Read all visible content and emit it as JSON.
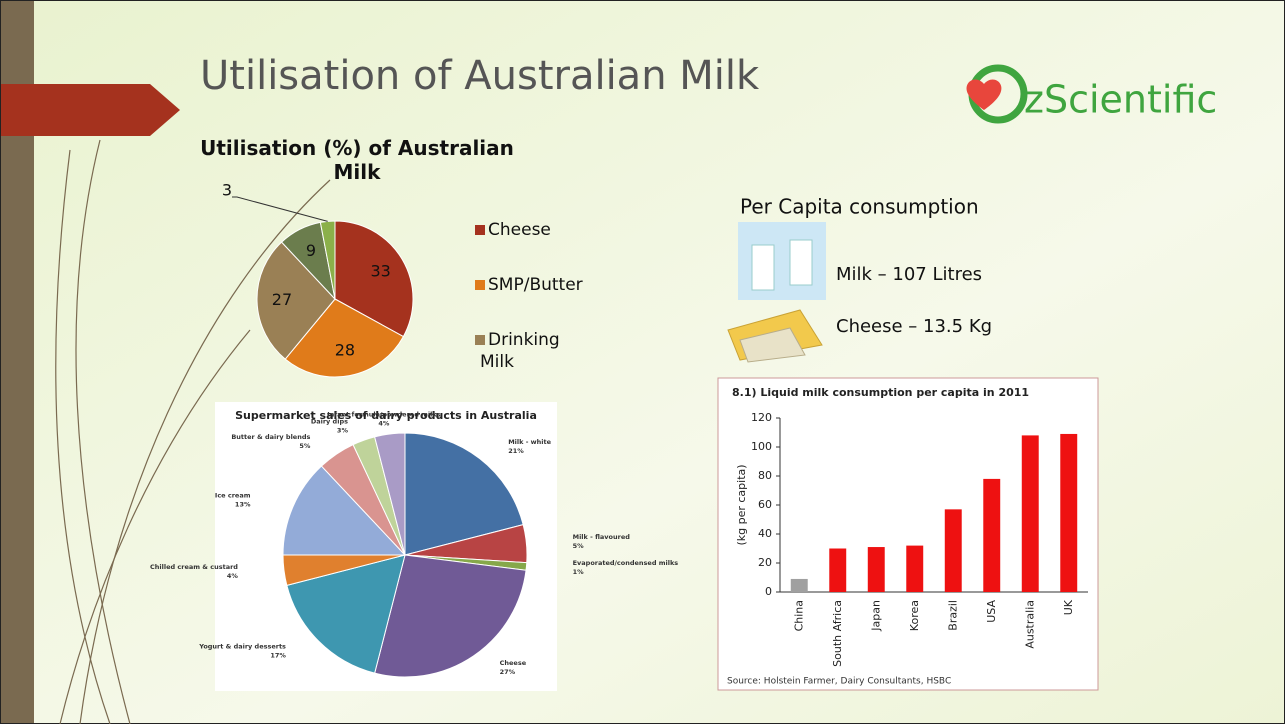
{
  "header": {
    "title": "Utilisation of Australian Milk",
    "logo_text": "zScientific"
  },
  "per_capita": {
    "title": "Per Capita consumption",
    "items": [
      "Milk – 107 Litres",
      "Cheese – 13.5 Kg"
    ]
  },
  "chart_data": [
    {
      "type": "pie",
      "title": "Utilisation (%) of Australian Milk",
      "categories": [
        "Cheese",
        "SMP/Butter",
        "Drinking Milk",
        null,
        null
      ],
      "values": [
        33,
        28,
        27,
        9,
        3
      ],
      "colors": [
        "#a5321e",
        "#e07b1a",
        "#9a8055",
        "#6b7d4d",
        "#8bb04a"
      ]
    },
    {
      "type": "pie",
      "title": "Supermarket sales of dairy products in Australia",
      "categories": [
        "Milk - white",
        "Milk - flavoured",
        "Evaporated/condensed milks",
        "Cheese",
        "Yogurt & dairy desserts",
        "Chilled cream & custard",
        "Ice cream",
        "Butter & dairy blends",
        "Dairy dips",
        "Infant formula/powdered milks"
      ],
      "values": [
        21,
        5,
        1,
        27,
        17,
        4,
        13,
        5,
        3,
        4
      ],
      "value_labels": [
        "21%",
        "5%",
        "1%",
        "27%",
        "17%",
        "4%",
        "13%",
        "5%",
        "3%",
        "4%"
      ],
      "colors": [
        "#4470a4",
        "#b84444",
        "#86a84a",
        "#705a96",
        "#3e97b0",
        "#e0802e",
        "#93abd8",
        "#d99490",
        "#bfd39a",
        "#a99bc6"
      ]
    },
    {
      "type": "bar",
      "title": "8.1) Liquid milk consumption per capita in 2011",
      "y_label": "(kg per capita)",
      "categories": [
        "China",
        "South Africa",
        "Japan",
        "Korea",
        "Brazil",
        "USA",
        "Australia",
        "UK"
      ],
      "values": [
        9,
        30,
        31,
        32,
        57,
        78,
        108,
        109
      ],
      "colors": [
        "#a0a0a0",
        "#ee1111",
        "#ee1111",
        "#ee1111",
        "#ee1111",
        "#ee1111",
        "#ee1111",
        "#ee1111"
      ],
      "ylim": [
        0,
        120
      ],
      "yticks": [
        0,
        20,
        40,
        60,
        80,
        100,
        120
      ],
      "source": "Source: Holstein Farmer, Dairy Consultants, HSBC"
    }
  ]
}
